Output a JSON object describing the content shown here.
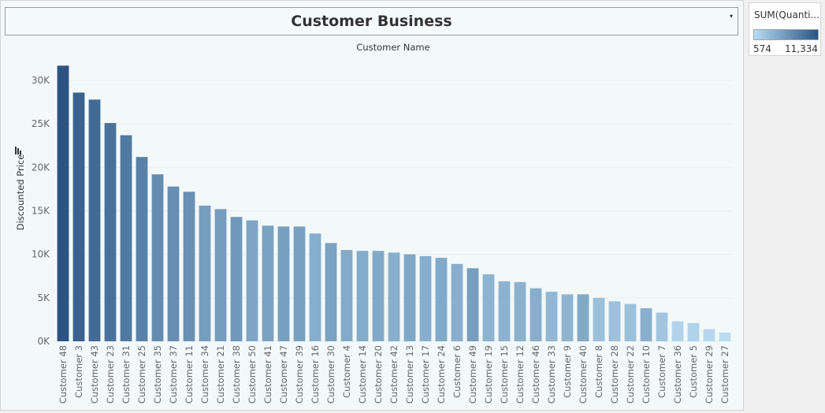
{
  "header": {
    "title": "Customer Business",
    "caret": "▾"
  },
  "legend": {
    "title": "SUM(Quanti...",
    "min_label": "574",
    "max_label": "11,334",
    "color_low": "#b9dcf2",
    "color_high": "#2a5483"
  },
  "colors": {
    "panel_bg": "#f3f9f9",
    "gridline": "#e6eeee",
    "bar_low": "#b9dcf2",
    "bar_high": "#2a5483"
  },
  "chart_data": {
    "type": "bar",
    "xlabel": "Customer Name",
    "ylabel": "Discounted Price",
    "ylim": [
      0,
      32000
    ],
    "ytick_values": [
      0,
      5000,
      10000,
      15000,
      20000,
      25000,
      30000
    ],
    "ytick_labels": [
      "0K",
      "5K",
      "10K",
      "15K",
      "20K",
      "25K",
      "30K"
    ],
    "color_measure_range": [
      574,
      11334
    ],
    "grid": true,
    "categories": [
      "Customer 48",
      "Customer 3",
      "Customer 43",
      "Customer 23",
      "Customer 31",
      "Customer 25",
      "Customer 35",
      "Customer 37",
      "Customer 11",
      "Customer 34",
      "Customer 21",
      "Customer 38",
      "Customer 50",
      "Customer 41",
      "Customer 47",
      "Customer 39",
      "Customer 16",
      "Customer 30",
      "Customer 4",
      "Customer 14",
      "Customer 20",
      "Customer 42",
      "Customer 13",
      "Customer 17",
      "Customer 24",
      "Customer 6",
      "Customer 49",
      "Customer 19",
      "Customer 15",
      "Customer 12",
      "Customer 46",
      "Customer 33",
      "Customer 9",
      "Customer 40",
      "Customer 8",
      "Customer 28",
      "Customer 22",
      "Customer 10",
      "Customer 7",
      "Customer 36",
      "Customer 5",
      "Customer 29",
      "Customer 27"
    ],
    "values": [
      31700,
      28600,
      27800,
      25100,
      23700,
      21200,
      19200,
      17800,
      17200,
      15600,
      15200,
      14300,
      13900,
      13300,
      13200,
      13200,
      12400,
      11300,
      10500,
      10400,
      10400,
      10200,
      10000,
      9800,
      9600,
      8900,
      8400,
      7700,
      6900,
      6800,
      6100,
      5700,
      5400,
      5400,
      5000,
      4600,
      4300,
      3800,
      3300,
      2300,
      2100,
      1400,
      1000
    ],
    "color_values": [
      11334,
      10200,
      9600,
      9000,
      8400,
      7800,
      7000,
      6700,
      6500,
      5500,
      5600,
      6000,
      4900,
      5200,
      5400,
      5300,
      4300,
      5200,
      4500,
      4400,
      4600,
      4100,
      4800,
      4200,
      4600,
      4100,
      5500,
      3800,
      3900,
      4000,
      4200,
      3500,
      3700,
      4600,
      2800,
      2700,
      2800,
      4100,
      2300,
      1200,
      1300,
      900,
      574
    ]
  }
}
